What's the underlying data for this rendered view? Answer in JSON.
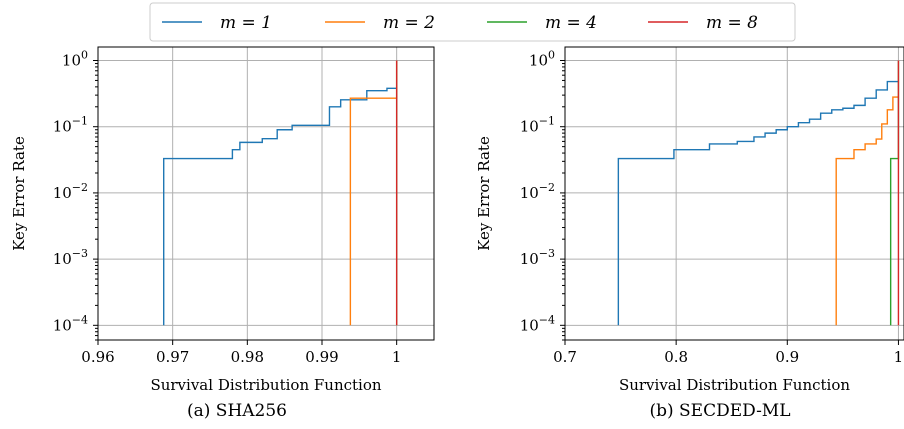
{
  "legend": {
    "entries": [
      {
        "label": "m = 1",
        "color": "#1f77b4"
      },
      {
        "label": "m = 2",
        "color": "#ff7f0e"
      },
      {
        "label": "m = 4",
        "color": "#2ca02c"
      },
      {
        "label": "m = 8",
        "color": "#d62728"
      }
    ]
  },
  "chart_data": [
    {
      "type": "line",
      "step": true,
      "caption": "(a) SHA256",
      "xlabel": "Survival Distribution Function",
      "ylabel": "Key Error Rate",
      "xlim": [
        0.96,
        1.005
      ],
      "ylim": [
        6e-05,
        1.6
      ],
      "yscale": "log",
      "grid": true,
      "xticks": [
        0.96,
        0.97,
        0.98,
        0.99,
        1
      ],
      "xticklabels": [
        "0.96",
        "0.97",
        "0.98",
        "0.99",
        "1"
      ],
      "yticks": [
        0.0001,
        0.001,
        0.01,
        0.1,
        1
      ],
      "series": [
        {
          "name": "m = 1",
          "color": "#1f77b4",
          "x": [
            0.9688,
            0.9688,
            0.978,
            0.978,
            0.979,
            0.979,
            0.982,
            0.982,
            0.984,
            0.984,
            0.986,
            0.986,
            0.991,
            0.991,
            0.9925,
            0.9925,
            0.996,
            0.996,
            0.9987,
            0.9987,
            1.0
          ],
          "y": [
            0.0001,
            0.033,
            0.033,
            0.045,
            0.045,
            0.058,
            0.058,
            0.066,
            0.066,
            0.09,
            0.09,
            0.105,
            0.105,
            0.2,
            0.2,
            0.255,
            0.255,
            0.35,
            0.35,
            0.38,
            0.38
          ]
        },
        {
          "name": "m = 2",
          "color": "#ff7f0e",
          "x": [
            0.9938,
            0.9938,
            1.0,
            1.0
          ],
          "y": [
            0.0001,
            0.27,
            0.27,
            1.0
          ]
        },
        {
          "name": "m = 4",
          "color": "#2ca02c",
          "x": [
            1.0,
            1.0
          ],
          "y": [
            0.0001,
            1.0
          ]
        },
        {
          "name": "m = 8",
          "color": "#d62728",
          "x": [
            1.0,
            1.0
          ],
          "y": [
            0.0001,
            1.0
          ]
        }
      ]
    },
    {
      "type": "line",
      "step": true,
      "caption": "(b) SECDED-ML",
      "xlabel": "Survival Distribution Function",
      "ylabel": "Key Error Rate",
      "xlim": [
        0.7,
        1.005
      ],
      "ylim": [
        6e-05,
        1.6
      ],
      "yscale": "log",
      "grid": true,
      "xticks": [
        0.7,
        0.8,
        0.9,
        1
      ],
      "xticklabels": [
        "0.7",
        "0.8",
        "0.9",
        "1"
      ],
      "yticks": [
        0.0001,
        0.001,
        0.01,
        0.1,
        1
      ],
      "series": [
        {
          "name": "m = 1",
          "color": "#1f77b4",
          "x": [
            0.748,
            0.748,
            0.798,
            0.798,
            0.83,
            0.83,
            0.855,
            0.855,
            0.87,
            0.87,
            0.88,
            0.88,
            0.89,
            0.89,
            0.9,
            0.9,
            0.91,
            0.91,
            0.92,
            0.92,
            0.93,
            0.93,
            0.94,
            0.94,
            0.95,
            0.95,
            0.96,
            0.96,
            0.97,
            0.97,
            0.98,
            0.98,
            0.99,
            0.99,
            1.0
          ],
          "y": [
            0.0001,
            0.033,
            0.033,
            0.045,
            0.045,
            0.055,
            0.055,
            0.06,
            0.06,
            0.07,
            0.07,
            0.08,
            0.08,
            0.09,
            0.09,
            0.1,
            0.1,
            0.115,
            0.115,
            0.13,
            0.13,
            0.16,
            0.16,
            0.18,
            0.18,
            0.19,
            0.19,
            0.21,
            0.21,
            0.27,
            0.27,
            0.36,
            0.36,
            0.48,
            0.48
          ]
        },
        {
          "name": "m = 2",
          "color": "#ff7f0e",
          "x": [
            0.944,
            0.944,
            0.96,
            0.96,
            0.97,
            0.97,
            0.98,
            0.98,
            0.985,
            0.985,
            0.99,
            0.99,
            0.995,
            0.995,
            1.0
          ],
          "y": [
            0.0001,
            0.033,
            0.033,
            0.045,
            0.045,
            0.055,
            0.055,
            0.065,
            0.065,
            0.11,
            0.11,
            0.18,
            0.18,
            0.28,
            0.28
          ]
        },
        {
          "name": "m = 4",
          "color": "#2ca02c",
          "x": [
            0.993,
            0.993,
            1.0,
            1.0
          ],
          "y": [
            0.0001,
            0.033,
            0.033,
            1.0
          ]
        },
        {
          "name": "m = 8",
          "color": "#d62728",
          "x": [
            1.0,
            1.0
          ],
          "y": [
            0.0001,
            1.0
          ]
        }
      ]
    }
  ]
}
